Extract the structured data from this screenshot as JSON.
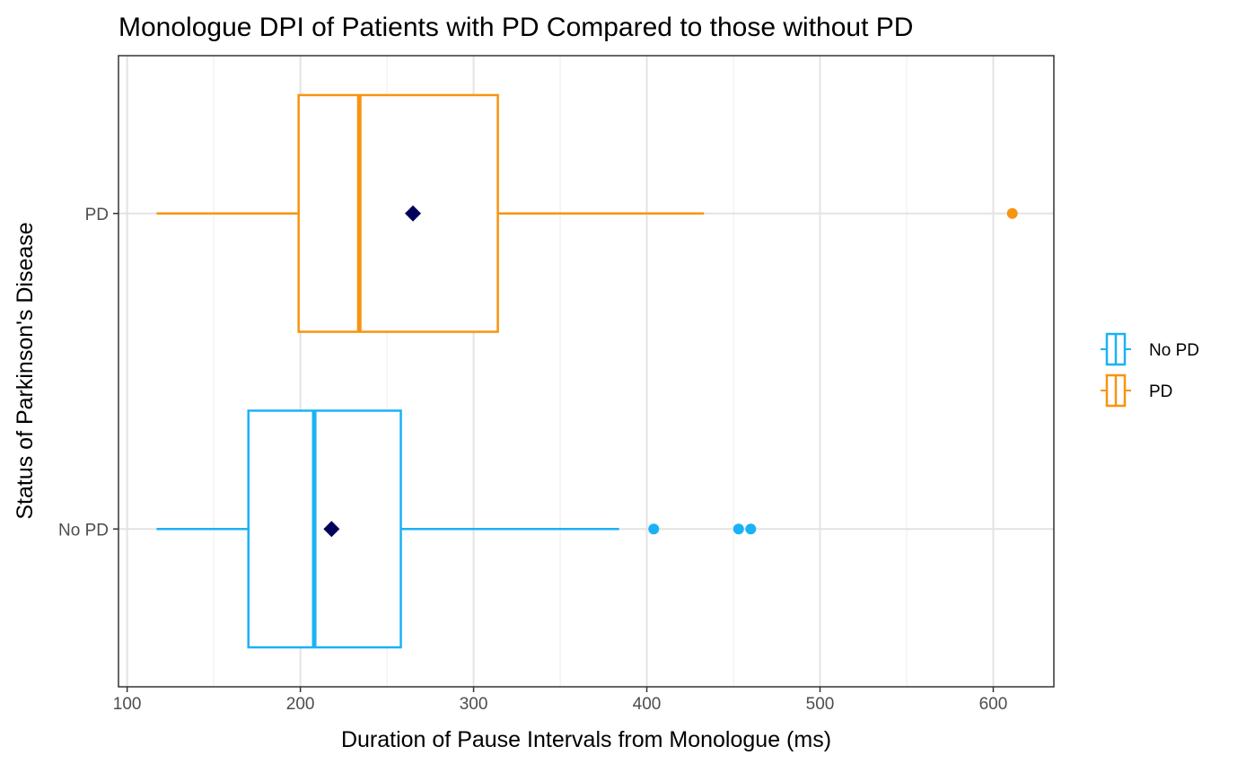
{
  "chart_data": {
    "type": "boxplot",
    "orientation": "horizontal",
    "title": "Monologue DPI of Patients with PD Compared to those without PD",
    "xlabel": "Duration of Pause Intervals from Monologue (ms)",
    "ylabel": "Status of Parkinson's Disease",
    "xlim": [
      95,
      635
    ],
    "x_ticks": [
      100,
      200,
      300,
      400,
      500,
      600
    ],
    "x_tick_labels": [
      "100",
      "200",
      "300",
      "400",
      "500",
      "600"
    ],
    "grid": true,
    "legend": {
      "placement": "right",
      "title": ""
    },
    "mean_marker_color": "#00005a",
    "groups": [
      {
        "name": "No PD",
        "color": "#1ab2f5",
        "whisker_low": 117,
        "q1": 170,
        "median": 208,
        "q3": 258,
        "whisker_high": 384,
        "mean": 218,
        "outliers": [
          404,
          453,
          460
        ]
      },
      {
        "name": "PD",
        "color": "#f79410",
        "whisker_low": 117,
        "q1": 199,
        "median": 234,
        "q3": 314,
        "whisker_high": 433,
        "mean": 265,
        "outliers": [
          611
        ]
      }
    ]
  }
}
